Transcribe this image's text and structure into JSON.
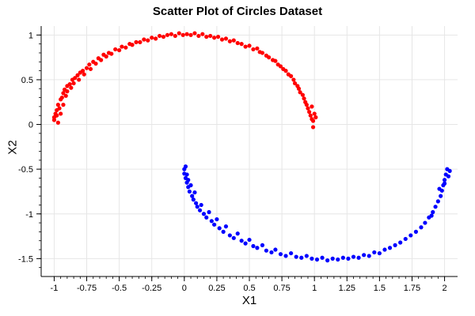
{
  "chart_data": {
    "type": "scatter",
    "title": "Scatter Plot of Circles Dataset",
    "xlabel": "X1",
    "ylabel": "X2",
    "xlim": [
      -1.1,
      2.1
    ],
    "ylim": [
      -1.7,
      1.1
    ],
    "x_ticks": [
      -1,
      -0.75,
      -0.5,
      -0.25,
      0,
      0.25,
      0.5,
      0.75,
      1,
      1.25,
      1.5,
      1.75,
      2
    ],
    "x_tick_labels": [
      "-1",
      "-0.75",
      "-0.5",
      "-0.25",
      "0",
      "0.25",
      "0.5",
      "0.75",
      "1",
      "1.25",
      "1.5",
      "1.75",
      "2"
    ],
    "y_ticks": [
      -1.5,
      -1,
      -0.5,
      0,
      0.5,
      1
    ],
    "y_tick_labels": [
      "-1.5",
      "-1",
      "-0.5",
      "0",
      "0.5",
      "1"
    ],
    "grid": true,
    "series": [
      {
        "color": "#ff0000",
        "points": [
          [
            -1.0,
            0.05
          ],
          [
            -1.0,
            0.08
          ],
          [
            -0.99,
            0.12
          ],
          [
            -0.98,
            0.1
          ],
          [
            -0.98,
            0.16
          ],
          [
            -0.97,
            0.22
          ],
          [
            -0.97,
            0.02
          ],
          [
            -0.96,
            0.18
          ],
          [
            -0.95,
            0.28
          ],
          [
            -0.95,
            0.12
          ],
          [
            -0.94,
            0.3
          ],
          [
            -0.93,
            0.35
          ],
          [
            -0.93,
            0.22
          ],
          [
            -0.92,
            0.39
          ],
          [
            -0.91,
            0.32
          ],
          [
            -0.9,
            0.43
          ],
          [
            -0.9,
            0.37
          ],
          [
            -0.88,
            0.45
          ],
          [
            -0.87,
            0.41
          ],
          [
            -0.86,
            0.5
          ],
          [
            -0.85,
            0.46
          ],
          [
            -0.84,
            0.52
          ],
          [
            -0.82,
            0.55
          ],
          [
            -0.81,
            0.5
          ],
          [
            -0.8,
            0.58
          ],
          [
            -0.78,
            0.6
          ],
          [
            -0.77,
            0.56
          ],
          [
            -0.75,
            0.63
          ],
          [
            -0.73,
            0.67
          ],
          [
            -0.72,
            0.62
          ],
          [
            -0.7,
            0.7
          ],
          [
            -0.68,
            0.68
          ],
          [
            -0.66,
            0.74
          ],
          [
            -0.64,
            0.72
          ],
          [
            -0.62,
            0.78
          ],
          [
            -0.6,
            0.76
          ],
          [
            -0.58,
            0.8
          ],
          [
            -0.56,
            0.79
          ],
          [
            -0.53,
            0.84
          ],
          [
            -0.5,
            0.83
          ],
          [
            -0.48,
            0.87
          ],
          [
            -0.45,
            0.86
          ],
          [
            -0.42,
            0.9
          ],
          [
            -0.4,
            0.89
          ],
          [
            -0.37,
            0.92
          ],
          [
            -0.34,
            0.92
          ],
          [
            -0.31,
            0.95
          ],
          [
            -0.28,
            0.94
          ],
          [
            -0.25,
            0.97
          ],
          [
            -0.22,
            0.96
          ],
          [
            -0.19,
            0.99
          ],
          [
            -0.16,
            0.98
          ],
          [
            -0.13,
            1.0
          ],
          [
            -0.1,
            1.01
          ],
          [
            -0.07,
            0.99
          ],
          [
            -0.04,
            1.02
          ],
          [
            -0.01,
            1.0
          ],
          [
            0.02,
            1.01
          ],
          [
            0.05,
            1.0
          ],
          [
            0.08,
            1.02
          ],
          [
            0.11,
            0.99
          ],
          [
            0.14,
            1.01
          ],
          [
            0.17,
            0.98
          ],
          [
            0.2,
            0.99
          ],
          [
            0.23,
            0.97
          ],
          [
            0.26,
            0.98
          ],
          [
            0.29,
            0.95
          ],
          [
            0.32,
            0.96
          ],
          [
            0.35,
            0.93
          ],
          [
            0.38,
            0.94
          ],
          [
            0.41,
            0.91
          ],
          [
            0.44,
            0.9
          ],
          [
            0.47,
            0.87
          ],
          [
            0.5,
            0.88
          ],
          [
            0.53,
            0.84
          ],
          [
            0.56,
            0.85
          ],
          [
            0.58,
            0.81
          ],
          [
            0.6,
            0.8
          ],
          [
            0.63,
            0.77
          ],
          [
            0.65,
            0.75
          ],
          [
            0.68,
            0.72
          ],
          [
            0.7,
            0.71
          ],
          [
            0.72,
            0.67
          ],
          [
            0.74,
            0.65
          ],
          [
            0.76,
            0.62
          ],
          [
            0.78,
            0.6
          ],
          [
            0.8,
            0.56
          ],
          [
            0.82,
            0.54
          ],
          [
            0.84,
            0.5
          ],
          [
            0.85,
            0.46
          ],
          [
            0.87,
            0.43
          ],
          [
            0.88,
            0.4
          ],
          [
            0.89,
            0.36
          ],
          [
            0.91,
            0.33
          ],
          [
            0.92,
            0.29
          ],
          [
            0.93,
            0.25
          ],
          [
            0.94,
            0.22
          ],
          [
            0.95,
            0.18
          ],
          [
            0.96,
            0.14
          ],
          [
            0.97,
            0.1
          ],
          [
            0.98,
            0.06
          ],
          [
            0.99,
            0.04
          ],
          [
            1.0,
            0.12
          ],
          [
            0.98,
            0.2
          ],
          [
            1.01,
            0.08
          ],
          [
            0.99,
            -0.03
          ]
        ]
      },
      {
        "color": "#0000ff",
        "points": [
          [
            0.0,
            -0.5
          ],
          [
            0.0,
            -0.55
          ],
          [
            0.01,
            -0.6
          ],
          [
            0.01,
            -0.47
          ],
          [
            0.02,
            -0.65
          ],
          [
            0.02,
            -0.56
          ],
          [
            0.03,
            -0.7
          ],
          [
            0.03,
            -0.62
          ],
          [
            0.04,
            -0.75
          ],
          [
            0.05,
            -0.68
          ],
          [
            0.06,
            -0.8
          ],
          [
            0.07,
            -0.84
          ],
          [
            0.08,
            -0.76
          ],
          [
            0.09,
            -0.88
          ],
          [
            0.1,
            -0.92
          ],
          [
            0.12,
            -0.96
          ],
          [
            0.13,
            -0.9
          ],
          [
            0.15,
            -1.0
          ],
          [
            0.17,
            -1.04
          ],
          [
            0.19,
            -0.98
          ],
          [
            0.21,
            -1.08
          ],
          [
            0.23,
            -1.12
          ],
          [
            0.25,
            -1.06
          ],
          [
            0.27,
            -1.16
          ],
          [
            0.3,
            -1.2
          ],
          [
            0.32,
            -1.14
          ],
          [
            0.35,
            -1.24
          ],
          [
            0.38,
            -1.27
          ],
          [
            0.41,
            -1.22
          ],
          [
            0.44,
            -1.3
          ],
          [
            0.47,
            -1.33
          ],
          [
            0.5,
            -1.29
          ],
          [
            0.53,
            -1.36
          ],
          [
            0.56,
            -1.38
          ],
          [
            0.6,
            -1.35
          ],
          [
            0.63,
            -1.41
          ],
          [
            0.67,
            -1.43
          ],
          [
            0.7,
            -1.4
          ],
          [
            0.74,
            -1.45
          ],
          [
            0.78,
            -1.47
          ],
          [
            0.82,
            -1.44
          ],
          [
            0.86,
            -1.48
          ],
          [
            0.9,
            -1.49
          ],
          [
            0.94,
            -1.47
          ],
          [
            0.98,
            -1.5
          ],
          [
            1.02,
            -1.51
          ],
          [
            1.06,
            -1.49
          ],
          [
            1.1,
            -1.52
          ],
          [
            1.14,
            -1.5
          ],
          [
            1.18,
            -1.51
          ],
          [
            1.22,
            -1.49
          ],
          [
            1.26,
            -1.5
          ],
          [
            1.3,
            -1.48
          ],
          [
            1.34,
            -1.49
          ],
          [
            1.38,
            -1.46
          ],
          [
            1.42,
            -1.47
          ],
          [
            1.46,
            -1.43
          ],
          [
            1.5,
            -1.44
          ],
          [
            1.54,
            -1.4
          ],
          [
            1.58,
            -1.38
          ],
          [
            1.62,
            -1.35
          ],
          [
            1.66,
            -1.32
          ],
          [
            1.7,
            -1.28
          ],
          [
            1.74,
            -1.24
          ],
          [
            1.78,
            -1.2
          ],
          [
            1.82,
            -1.15
          ],
          [
            1.85,
            -1.1
          ],
          [
            1.88,
            -1.04
          ],
          [
            1.91,
            -0.98
          ],
          [
            1.93,
            -0.92
          ],
          [
            1.95,
            -0.86
          ],
          [
            1.97,
            -0.8
          ],
          [
            1.98,
            -0.74
          ],
          [
            1.99,
            -0.68
          ],
          [
            2.0,
            -0.62
          ],
          [
            2.01,
            -0.56
          ],
          [
            2.02,
            -0.5
          ],
          [
            2.03,
            -0.58
          ],
          [
            2.04,
            -0.52
          ],
          [
            1.96,
            -0.72
          ],
          [
            2.0,
            -0.66
          ],
          [
            1.9,
            -1.02
          ]
        ]
      }
    ]
  }
}
